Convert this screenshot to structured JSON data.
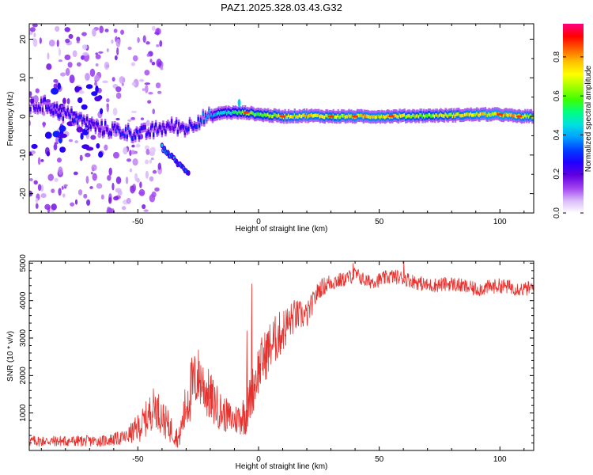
{
  "title": "PAZ1.2025.328.03.43.G32",
  "colors": {
    "snr_line": "#e8302c",
    "axis": "#000000"
  },
  "chart_data": [
    {
      "type": "heatmap",
      "name": "spectrogram",
      "xlabel": "Height of straight line (km)",
      "ylabel": "Frequency (Hz)",
      "xlim": [
        -95,
        114
      ],
      "ylim": [
        -25,
        24
      ],
      "xticks": [
        -50,
        0,
        50,
        100
      ],
      "yticks": [
        -20,
        -10,
        0,
        10,
        20
      ],
      "colorbar": {
        "label": "Normalized spectral amplitude",
        "range": [
          0,
          0.97
        ],
        "ticks": [
          0.0,
          0.2,
          0.4,
          0.6,
          0.8
        ],
        "tick_labels": [
          "0.0",
          "0.2",
          "0.4",
          "0.6",
          "0.8"
        ],
        "colormap": [
          "#ffffff",
          "#d8b8f8",
          "#a040f0",
          "#6000e0",
          "#2000ff",
          "#0040ff",
          "#00a0ff",
          "#00e0e0",
          "#00ff80",
          "#40ff00",
          "#a0ff00",
          "#ffff00",
          "#ffc000",
          "#ff6000",
          "#ff0000",
          "#ff0080"
        ]
      },
      "ridge": [
        {
          "x": -95,
          "f": 2.5,
          "a": 0.25
        },
        {
          "x": -88,
          "f": 3.0,
          "a": 0.28
        },
        {
          "x": -82,
          "f": 1.0,
          "a": 0.3
        },
        {
          "x": -77,
          "f": 0.0,
          "a": 0.32
        },
        {
          "x": -72,
          "f": -1.5,
          "a": 0.3
        },
        {
          "x": -66,
          "f": -3.0,
          "a": 0.25
        },
        {
          "x": -60,
          "f": -3.5,
          "a": 0.3
        },
        {
          "x": -55,
          "f": -4.0,
          "a": 0.35
        },
        {
          "x": -50,
          "f": -4.5,
          "a": 0.3
        },
        {
          "x": -45,
          "f": -4.0,
          "a": 0.3
        },
        {
          "x": -40,
          "f": -3.0,
          "a": 0.28
        },
        {
          "x": -35,
          "f": -2.5,
          "a": 0.25
        },
        {
          "x": -30,
          "f": -3.0,
          "a": 0.3
        },
        {
          "x": -25,
          "f": -1.0,
          "a": 0.35
        },
        {
          "x": -20,
          "f": 0.0,
          "a": 0.45
        },
        {
          "x": -15,
          "f": 1.0,
          "a": 0.5
        },
        {
          "x": -10,
          "f": 1.0,
          "a": 0.6
        },
        {
          "x": -5,
          "f": 1.0,
          "a": 0.7
        },
        {
          "x": 0,
          "f": 0.5,
          "a": 0.7
        },
        {
          "x": 10,
          "f": 0.0,
          "a": 0.8
        },
        {
          "x": 20,
          "f": 0.2,
          "a": 0.85
        },
        {
          "x": 30,
          "f": 0.0,
          "a": 0.8
        },
        {
          "x": 40,
          "f": 0.0,
          "a": 0.85
        },
        {
          "x": 50,
          "f": 0.0,
          "a": 0.85
        },
        {
          "x": 60,
          "f": 0.1,
          "a": 0.8
        },
        {
          "x": 70,
          "f": 0.2,
          "a": 0.75
        },
        {
          "x": 80,
          "f": 0.3,
          "a": 0.8
        },
        {
          "x": 90,
          "f": 0.5,
          "a": 0.85
        },
        {
          "x": 100,
          "f": 0.5,
          "a": 0.9
        },
        {
          "x": 108,
          "f": 0.0,
          "a": 0.85
        },
        {
          "x": 114,
          "f": 0.0,
          "a": 0.8
        }
      ],
      "branch": [
        {
          "x": -40,
          "f": -8.0,
          "a": 0.3
        },
        {
          "x": -36,
          "f": -10.5,
          "a": 0.28
        },
        {
          "x": -32,
          "f": -13.0,
          "a": 0.25
        },
        {
          "x": -29,
          "f": -14.5,
          "a": 0.2
        }
      ]
    },
    {
      "type": "line",
      "name": "snr",
      "xlabel": "Height of straight line (km)",
      "ylabel": "SNR (10 * v/v)",
      "xlim": [
        -95,
        114
      ],
      "ylim": [
        0,
        5050
      ],
      "xticks": [
        -50,
        0,
        50,
        100
      ],
      "yticks": [
        1000,
        2000,
        3000,
        4000,
        5000
      ],
      "trend": {
        "x": [
          -95,
          -80,
          -65,
          -55,
          -48,
          -43,
          -38,
          -33,
          -29,
          -25,
          -20,
          -15,
          -10,
          -5,
          0,
          5,
          10,
          15,
          20,
          25,
          30,
          35,
          40,
          45,
          50,
          55,
          60,
          65,
          70,
          80,
          90,
          100,
          105,
          110,
          114
        ],
        "y": [
          250,
          250,
          250,
          350,
          700,
          1200,
          700,
          300,
          1500,
          2000,
          1400,
          1000,
          800,
          1000,
          2200,
          2800,
          3200,
          3600,
          3600,
          4300,
          4500,
          4550,
          4700,
          4500,
          4550,
          4650,
          4600,
          4500,
          4400,
          4450,
          4300,
          4400,
          4350,
          4300,
          4350
        ],
        "noise": [
          150,
          150,
          150,
          200,
          450,
          550,
          450,
          250,
          900,
          800,
          700,
          500,
          400,
          600,
          700,
          700,
          600,
          450,
          350,
          250,
          250,
          200,
          200,
          200,
          200,
          200,
          200,
          200,
          200,
          200,
          200,
          200,
          200,
          200,
          200
        ]
      },
      "spikes": [
        {
          "x": -3,
          "y": 4450
        },
        {
          "x": 60,
          "y": 5050
        },
        {
          "x": 39,
          "y": 5000
        },
        {
          "x": -5,
          "y": 3200
        }
      ]
    }
  ]
}
